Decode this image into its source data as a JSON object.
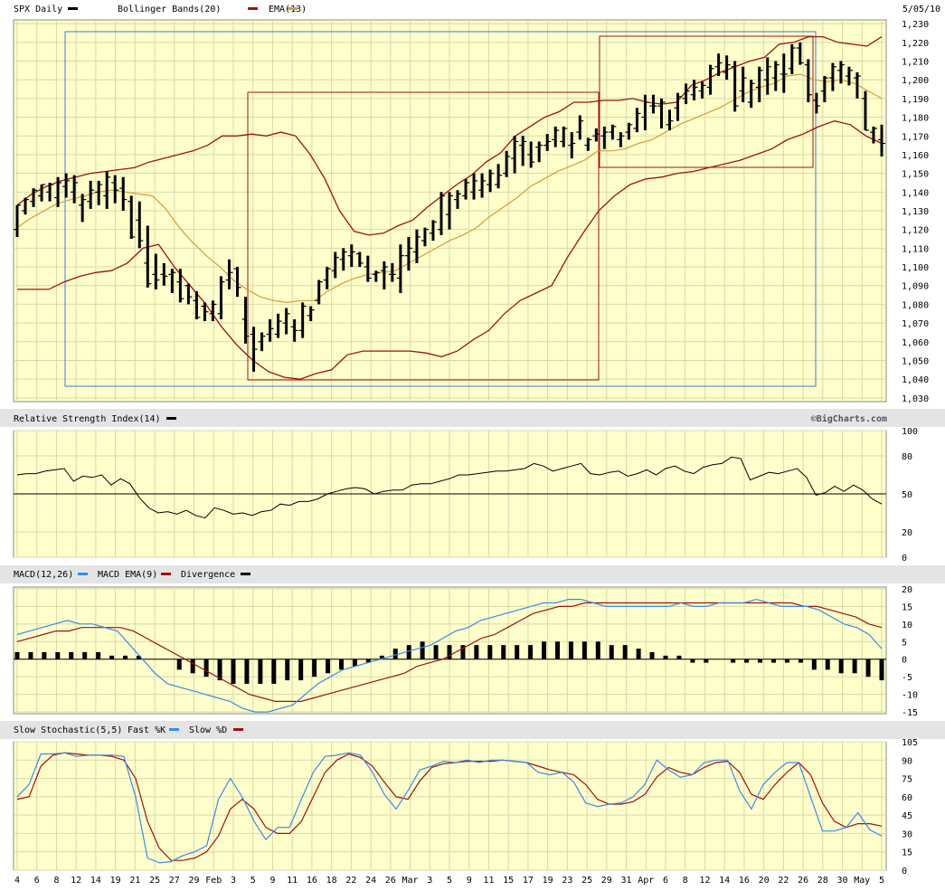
{
  "header": {
    "symbol_label": "SPX Daily",
    "bb_label": "Bollinger Bands(20)",
    "ema_label": "EMA(13)",
    "date": "5/05/10",
    "copyright": "©BigCharts.com"
  },
  "colors": {
    "panel_bg": "#FFFFCC",
    "grid": "#D8D8A8",
    "label_bar": "#E4E4E4",
    "bollinger": "#A01010",
    "ema": "#D89A3A",
    "price": "#000000",
    "box_blue": "#3A7AD8",
    "box_red": "#A01010",
    "macd": "#3A8AE8",
    "macd_signal": "#A01010",
    "stoch_fast": "#3A8AE8",
    "stoch_slow": "#A01010"
  },
  "chart_data": [
    {
      "type": "ohlc",
      "panel": "price",
      "title": "SPX Daily",
      "legend": [
        "Bollinger Bands(20)",
        "EMA(13)"
      ],
      "y_ticks": [
        1030,
        1040,
        1050,
        1060,
        1070,
        1080,
        1090,
        1100,
        1110,
        1120,
        1130,
        1140,
        1150,
        1160,
        1170,
        1180,
        1190,
        1200,
        1210,
        1220,
        1230
      ],
      "ylim": [
        1028,
        1232
      ],
      "x_ticks": [
        "4",
        "6",
        "8",
        "12",
        "14",
        "19",
        "21",
        "25",
        "27",
        "29",
        "Feb",
        "3",
        "5",
        "9",
        "11",
        "16",
        "18",
        "22",
        "24",
        "26",
        "Mar",
        "3",
        "5",
        "9",
        "11",
        "15",
        "17",
        "19",
        "23",
        "25",
        "29",
        "31",
        "Apr",
        "6",
        "8",
        "12",
        "14",
        "16",
        "20",
        "22",
        "26",
        "28",
        "30",
        "May",
        "5"
      ],
      "highs": [
        1133,
        1137,
        1142,
        1144,
        1145,
        1148,
        1150,
        1149,
        1139,
        1146,
        1146,
        1151,
        1149,
        1148,
        1138,
        1135,
        1122,
        1107,
        1102,
        1099,
        1099,
        1091,
        1087,
        1081,
        1082,
        1095,
        1104,
        1100,
        1084,
        1068,
        1065,
        1072,
        1075,
        1078,
        1072,
        1081,
        1079,
        1093,
        1100,
        1108,
        1110,
        1112,
        1108,
        1106,
        1098,
        1103,
        1102,
        1112,
        1116,
        1120,
        1121,
        1125,
        1140,
        1140,
        1141,
        1147,
        1150,
        1150,
        1152,
        1155,
        1162,
        1170,
        1170,
        1167,
        1167,
        1171,
        1175,
        1175,
        1172,
        1181,
        1169,
        1174,
        1175,
        1176,
        1172,
        1177,
        1185,
        1192,
        1192,
        1190,
        1184,
        1193,
        1198,
        1200,
        1199,
        1208,
        1214,
        1213,
        1210,
        1207,
        1200,
        1207,
        1212,
        1210,
        1214,
        1219,
        1220,
        1211,
        1193,
        1202,
        1209,
        1210,
        1207,
        1204,
        1194,
        1175,
        1176
      ],
      "lows": [
        1116,
        1128,
        1132,
        1135,
        1135,
        1132,
        1137,
        1134,
        1124,
        1131,
        1133,
        1131,
        1134,
        1130,
        1115,
        1110,
        1089,
        1088,
        1090,
        1086,
        1081,
        1080,
        1072,
        1071,
        1071,
        1072,
        1088,
        1084,
        1059,
        1044,
        1055,
        1060,
        1062,
        1064,
        1060,
        1062,
        1071,
        1080,
        1088,
        1094,
        1098,
        1100,
        1100,
        1092,
        1092,
        1088,
        1092,
        1086,
        1098,
        1102,
        1111,
        1114,
        1117,
        1120,
        1131,
        1136,
        1136,
        1137,
        1140,
        1142,
        1148,
        1150,
        1154,
        1153,
        1156,
        1162,
        1164,
        1164,
        1158,
        1168,
        1162,
        1167,
        1163,
        1168,
        1164,
        1168,
        1172,
        1173,
        1182,
        1174,
        1173,
        1178,
        1187,
        1189,
        1190,
        1192,
        1202,
        1200,
        1183,
        1188,
        1185,
        1188,
        1192,
        1194,
        1193,
        1203,
        1208,
        1188,
        1182,
        1188,
        1194,
        1198,
        1197,
        1190,
        1173,
        1166,
        1159
      ],
      "opens": [
        1120,
        1130,
        1135,
        1138,
        1140,
        1137,
        1143,
        1140,
        1133,
        1135,
        1140,
        1138,
        1145,
        1142,
        1135,
        1125,
        1102,
        1096,
        1096,
        1096,
        1092,
        1090,
        1082,
        1079,
        1075,
        1075,
        1093,
        1099,
        1072,
        1064,
        1060,
        1064,
        1064,
        1070,
        1068,
        1066,
        1074,
        1082,
        1093,
        1098,
        1104,
        1106,
        1107,
        1100,
        1096,
        1098,
        1096,
        1094,
        1106,
        1108,
        1114,
        1118,
        1120,
        1128,
        1136,
        1138,
        1140,
        1141,
        1144,
        1144,
        1150,
        1158,
        1165,
        1160,
        1164,
        1165,
        1168,
        1167,
        1165,
        1172,
        1165,
        1170,
        1170,
        1172,
        1168,
        1172,
        1174,
        1180,
        1186,
        1186,
        1176,
        1185,
        1190,
        1192,
        1194,
        1196,
        1207,
        1204,
        1207,
        1194,
        1188,
        1196,
        1200,
        1201,
        1203,
        1206,
        1217,
        1208,
        1189,
        1194,
        1201,
        1205,
        1202,
        1201,
        1190,
        1172,
        1168
      ],
      "closes": [
        1133,
        1136,
        1141,
        1144,
        1144,
        1145,
        1146,
        1145,
        1136,
        1141,
        1144,
        1148,
        1141,
        1136,
        1116,
        1114,
        1091,
        1093,
        1095,
        1097,
        1083,
        1084,
        1073,
        1076,
        1080,
        1092,
        1097,
        1089,
        1063,
        1056,
        1063,
        1067,
        1071,
        1075,
        1066,
        1079,
        1077,
        1092,
        1099,
        1105,
        1108,
        1108,
        1102,
        1094,
        1097,
        1100,
        1096,
        1106,
        1110,
        1116,
        1120,
        1124,
        1138,
        1138,
        1139,
        1145,
        1146,
        1146,
        1150,
        1149,
        1159,
        1167,
        1167,
        1156,
        1165,
        1167,
        1173,
        1174,
        1166,
        1178,
        1168,
        1171,
        1172,
        1175,
        1170,
        1176,
        1182,
        1188,
        1186,
        1188,
        1178,
        1191,
        1194,
        1196,
        1197,
        1206,
        1209,
        1208,
        1186,
        1201,
        1198,
        1205,
        1207,
        1208,
        1203,
        1217,
        1209,
        1192,
        1186,
        1201,
        1207,
        1208,
        1205,
        1202,
        1173,
        1174,
        1166
      ],
      "bollinger_upper": [
        1133,
        1139,
        1143,
        1146,
        1148,
        1150,
        1151,
        1152,
        1153,
        1156,
        1158,
        1160,
        1162,
        1165,
        1170,
        1170,
        1171,
        1170,
        1172,
        1170,
        1160,
        1147,
        1130,
        1119,
        1117,
        1118,
        1122,
        1125,
        1132,
        1138,
        1144,
        1149,
        1156,
        1161,
        1170,
        1175,
        1180,
        1183,
        1188,
        1188,
        1189,
        1189,
        1190,
        1188,
        1187,
        1188,
        1197,
        1200,
        1204,
        1207,
        1210,
        1212,
        1219,
        1220,
        1223,
        1223,
        1220,
        1219,
        1218,
        1223
      ],
      "bollinger_lower": [
        1088,
        1088,
        1088,
        1092,
        1095,
        1097,
        1098,
        1102,
        1110,
        1112,
        1100,
        1090,
        1080,
        1068,
        1058,
        1050,
        1044,
        1041,
        1040,
        1043,
        1045,
        1053,
        1055,
        1055,
        1055,
        1055,
        1054,
        1052,
        1055,
        1061,
        1066,
        1075,
        1082,
        1086,
        1090,
        1105,
        1118,
        1130,
        1138,
        1144,
        1147,
        1148,
        1150,
        1151,
        1153,
        1155,
        1157,
        1160,
        1163,
        1168,
        1171,
        1175,
        1178,
        1176,
        1170,
        1166
      ],
      "ema": [
        1121,
        1126,
        1130,
        1134,
        1136,
        1138,
        1140,
        1141,
        1140,
        1139,
        1138,
        1131,
        1121,
        1113,
        1106,
        1100,
        1093,
        1088,
        1084,
        1082,
        1081,
        1082,
        1082,
        1087,
        1091,
        1094,
        1096,
        1097,
        1098,
        1102,
        1106,
        1110,
        1114,
        1117,
        1121,
        1127,
        1132,
        1137,
        1143,
        1147,
        1151,
        1154,
        1157,
        1162,
        1162,
        1163,
        1166,
        1168,
        1172,
        1176,
        1179,
        1182,
        1185,
        1189,
        1193,
        1196,
        1198,
        1202,
        1203,
        1200,
        1199,
        1200,
        1198,
        1194,
        1190
      ],
      "annotation_boxes": [
        "blue",
        "red",
        "red"
      ]
    },
    {
      "type": "line",
      "panel": "rsi",
      "title": "Relative Strength Index(14)",
      "y_ticks": [
        0,
        20,
        50,
        80,
        100
      ],
      "ylim": [
        0,
        100
      ],
      "reference_line": 50,
      "values": [
        65,
        66,
        66,
        68,
        69,
        70,
        60,
        64,
        63,
        65,
        57,
        62,
        58,
        47,
        39,
        35,
        36,
        34,
        37,
        33,
        31,
        39,
        37,
        34,
        35,
        33,
        36,
        37,
        42,
        41,
        44,
        44,
        46,
        50,
        52,
        54,
        55,
        54,
        50,
        52,
        53,
        53,
        57,
        58,
        58,
        60,
        62,
        65,
        65,
        66,
        67,
        68,
        68,
        69,
        70,
        74,
        72,
        68,
        70,
        72,
        74,
        66,
        65,
        67,
        68,
        64,
        66,
        69,
        65,
        70,
        72,
        68,
        66,
        71,
        73,
        74,
        79,
        78,
        61,
        64,
        67,
        66,
        68,
        70,
        63,
        49,
        51,
        56,
        52,
        57,
        53,
        46,
        42
      ]
    },
    {
      "type": "line",
      "panel": "macd",
      "title": "MACD(12,26)",
      "legend": [
        "MACD(12,26)",
        "MACD EMA(9)",
        "Divergence"
      ],
      "y_ticks": [
        -15,
        -10,
        -5,
        0,
        5,
        10,
        15,
        20
      ],
      "ylim": [
        -15.5,
        20.5
      ],
      "macd": [
        7,
        8,
        9,
        10,
        11,
        10,
        10,
        9,
        8,
        4,
        0,
        -4,
        -7,
        -8,
        -9,
        -10,
        -11,
        -12,
        -14,
        -15,
        -15,
        -14,
        -13,
        -10,
        -7,
        -5,
        -3,
        -2,
        -1,
        0,
        1,
        2,
        3,
        4,
        6,
        8,
        9,
        11,
        12,
        13,
        14,
        15,
        16,
        16,
        17,
        17,
        16,
        15,
        15,
        15,
        15,
        15,
        15,
        16,
        15,
        15,
        16,
        16,
        16,
        17,
        16,
        15,
        15,
        15,
        14,
        12,
        10,
        9,
        7,
        3
      ],
      "signal": [
        5,
        6,
        7,
        8,
        8,
        9,
        9,
        9,
        9,
        8,
        6,
        4,
        2,
        0,
        -2,
        -4,
        -6,
        -8,
        -10,
        -11,
        -12,
        -12,
        -12,
        -11,
        -10,
        -9,
        -8,
        -7,
        -6,
        -5,
        -4,
        -2,
        -1,
        0,
        2,
        4,
        6,
        7,
        9,
        11,
        13,
        14,
        15,
        15,
        16,
        16,
        16,
        16,
        16,
        16,
        16,
        16,
        16,
        16,
        16,
        16,
        16,
        16,
        16,
        16,
        16,
        15,
        15,
        14,
        13,
        12,
        10,
        9
      ],
      "divergence": [
        2,
        2,
        2,
        2,
        2,
        2,
        2,
        1,
        1,
        1,
        0,
        0,
        -3,
        -4,
        -5,
        -6,
        -7,
        -7,
        -7,
        -7,
        -6,
        -6,
        -5,
        -4,
        -3,
        -2,
        -1,
        1,
        3,
        4,
        5,
        4,
        4,
        4,
        4,
        4,
        4,
        4,
        4,
        5,
        5,
        5,
        5,
        5,
        4,
        4,
        3,
        2,
        1,
        1,
        -1,
        -1,
        0,
        -1,
        -1,
        -1,
        -1,
        -1,
        -1,
        -3,
        -3,
        -4,
        -4,
        -5,
        -6
      ]
    },
    {
      "type": "line",
      "panel": "stochastic",
      "title": "Slow Stochastic(5,5)",
      "legend": [
        "Fast %K",
        "Slow %D"
      ],
      "y_ticks": [
        0,
        15,
        30,
        45,
        60,
        75,
        90,
        105
      ],
      "ylim": [
        0,
        105
      ],
      "fast_k": [
        60,
        70,
        95,
        95,
        96,
        93,
        94,
        94,
        94,
        93,
        60,
        10,
        6,
        7,
        12,
        15,
        20,
        58,
        75,
        60,
        40,
        25,
        35,
        35,
        58,
        80,
        93,
        94,
        96,
        94,
        80,
        62,
        50,
        65,
        82,
        85,
        89,
        88,
        90,
        88,
        90,
        90,
        89,
        88,
        80,
        78,
        80,
        72,
        55,
        52,
        54,
        55,
        60,
        70,
        90,
        82,
        76,
        78,
        88,
        90,
        90,
        65,
        50,
        70,
        80,
        88,
        88,
        60,
        32,
        32,
        35,
        47,
        33,
        28
      ],
      "slow_d": [
        58,
        60,
        85,
        94,
        96,
        95,
        94,
        94,
        93,
        90,
        75,
        40,
        18,
        8,
        8,
        10,
        15,
        28,
        50,
        58,
        50,
        35,
        30,
        30,
        40,
        60,
        80,
        90,
        95,
        92,
        85,
        72,
        60,
        58,
        73,
        84,
        87,
        88,
        89,
        89,
        89,
        90,
        89,
        88,
        85,
        82,
        80,
        78,
        70,
        58,
        54,
        54,
        56,
        62,
        76,
        84,
        80,
        78,
        84,
        88,
        89,
        80,
        62,
        58,
        70,
        80,
        88,
        78,
        55,
        40,
        35,
        38,
        38,
        36
      ]
    }
  ]
}
